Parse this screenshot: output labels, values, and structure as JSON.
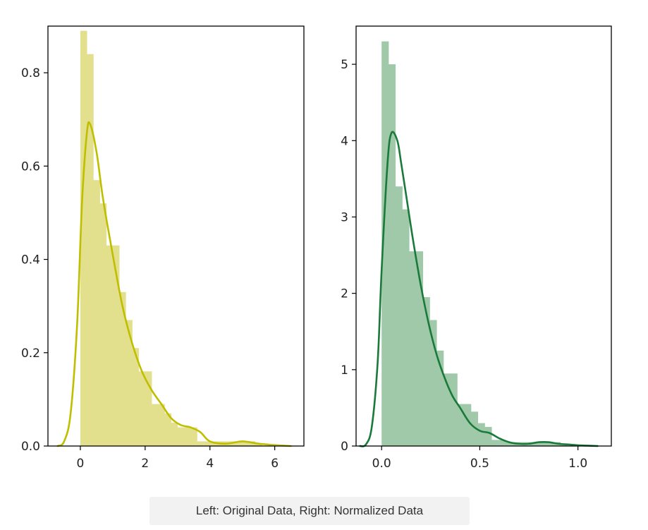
{
  "chart_data": [
    {
      "type": "histogram with kde",
      "panel": "left",
      "color_bar": "#e3e08d",
      "color_line": "#bfbf00",
      "xlim": [
        -1,
        6.9
      ],
      "ylim": [
        0,
        0.9
      ],
      "xticks": [
        0,
        2,
        4,
        6
      ],
      "yticks": [
        0.0,
        0.2,
        0.4,
        0.6,
        0.8
      ],
      "xtick_labels": [
        "0",
        "2",
        "4",
        "6"
      ],
      "ytick_labels": [
        "0.0",
        "0.2",
        "0.4",
        "0.6",
        "0.8"
      ],
      "bins": [
        {
          "x0": 0.0,
          "x1": 0.2,
          "density": 0.89
        },
        {
          "x0": 0.2,
          "x1": 0.4,
          "density": 0.84
        },
        {
          "x0": 0.4,
          "x1": 0.6,
          "density": 0.57
        },
        {
          "x0": 0.6,
          "x1": 0.8,
          "density": 0.52
        },
        {
          "x0": 0.8,
          "x1": 1.0,
          "density": 0.43
        },
        {
          "x0": 1.0,
          "x1": 1.2,
          "density": 0.43
        },
        {
          "x0": 1.2,
          "x1": 1.4,
          "density": 0.33
        },
        {
          "x0": 1.4,
          "x1": 1.6,
          "density": 0.27
        },
        {
          "x0": 1.6,
          "x1": 1.8,
          "density": 0.21
        },
        {
          "x0": 1.8,
          "x1": 2.0,
          "density": 0.16
        },
        {
          "x0": 2.0,
          "x1": 2.2,
          "density": 0.16
        },
        {
          "x0": 2.2,
          "x1": 2.4,
          "density": 0.09
        },
        {
          "x0": 2.4,
          "x1": 2.6,
          "density": 0.09
        },
        {
          "x0": 2.6,
          "x1": 2.8,
          "density": 0.07
        },
        {
          "x0": 2.8,
          "x1": 3.0,
          "density": 0.05
        },
        {
          "x0": 3.0,
          "x1": 3.2,
          "density": 0.04
        },
        {
          "x0": 3.2,
          "x1": 3.4,
          "density": 0.04
        },
        {
          "x0": 3.4,
          "x1": 3.6,
          "density": 0.04
        },
        {
          "x0": 3.6,
          "x1": 3.8,
          "density": 0.01
        },
        {
          "x0": 3.8,
          "x1": 4.0,
          "density": 0.01
        },
        {
          "x0": 4.0,
          "x1": 4.2,
          "density": 0.01
        },
        {
          "x0": 4.2,
          "x1": 4.4,
          "density": 0.01
        },
        {
          "x0": 4.4,
          "x1": 4.6,
          "density": 0.01
        },
        {
          "x0": 4.6,
          "x1": 4.8,
          "density": 0.01
        },
        {
          "x0": 4.8,
          "x1": 5.0,
          "density": 0.01
        },
        {
          "x0": 5.0,
          "x1": 5.2,
          "density": 0.01
        },
        {
          "x0": 5.2,
          "x1": 5.4,
          "density": 0.01
        },
        {
          "x0": 5.4,
          "x1": 5.6,
          "density": 0.005
        }
      ],
      "kde": {
        "x": [
          -0.7,
          -0.5,
          -0.3,
          -0.1,
          0.05,
          0.2,
          0.3,
          0.5,
          0.7,
          1.0,
          1.3,
          1.6,
          1.9,
          2.2,
          2.5,
          2.8,
          3.1,
          3.4,
          3.7,
          4.0,
          4.5,
          5.0,
          5.5,
          6.0,
          6.5
        ],
        "y": [
          0.0,
          0.01,
          0.07,
          0.26,
          0.52,
          0.67,
          0.69,
          0.63,
          0.53,
          0.41,
          0.3,
          0.22,
          0.16,
          0.12,
          0.09,
          0.06,
          0.045,
          0.04,
          0.03,
          0.01,
          0.005,
          0.01,
          0.005,
          0.002,
          0.0
        ]
      }
    },
    {
      "type": "histogram with kde",
      "panel": "right",
      "color_bar": "#9fc9a9",
      "color_line": "#1a7a3a",
      "xlim": [
        -0.13,
        1.17
      ],
      "ylim": [
        0,
        5.5
      ],
      "xticks": [
        0.0,
        0.5,
        1.0
      ],
      "yticks": [
        0,
        1,
        2,
        3,
        4,
        5
      ],
      "xtick_labels": [
        "0.0",
        "0.5",
        "1.0"
      ],
      "ytick_labels": [
        "0",
        "1",
        "2",
        "3",
        "4",
        "5"
      ],
      "bins": [
        {
          "x0": 0.0,
          "x1": 0.035,
          "density": 5.3
        },
        {
          "x0": 0.035,
          "x1": 0.07,
          "density": 5.0
        },
        {
          "x0": 0.07,
          "x1": 0.105,
          "density": 3.4
        },
        {
          "x0": 0.105,
          "x1": 0.14,
          "density": 3.1
        },
        {
          "x0": 0.14,
          "x1": 0.175,
          "density": 2.55
        },
        {
          "x0": 0.175,
          "x1": 0.21,
          "density": 2.55
        },
        {
          "x0": 0.21,
          "x1": 0.245,
          "density": 1.95
        },
        {
          "x0": 0.245,
          "x1": 0.28,
          "density": 1.65
        },
        {
          "x0": 0.28,
          "x1": 0.315,
          "density": 1.25
        },
        {
          "x0": 0.315,
          "x1": 0.35,
          "density": 0.95
        },
        {
          "x0": 0.35,
          "x1": 0.385,
          "density": 0.95
        },
        {
          "x0": 0.385,
          "x1": 0.42,
          "density": 0.55
        },
        {
          "x0": 0.42,
          "x1": 0.455,
          "density": 0.55
        },
        {
          "x0": 0.455,
          "x1": 0.49,
          "density": 0.45
        },
        {
          "x0": 0.49,
          "x1": 0.525,
          "density": 0.3
        },
        {
          "x0": 0.525,
          "x1": 0.56,
          "density": 0.25
        },
        {
          "x0": 0.56,
          "x1": 0.595,
          "density": 0.08
        },
        {
          "x0": 0.595,
          "x1": 0.63,
          "density": 0.08
        },
        {
          "x0": 0.63,
          "x1": 0.665,
          "density": 0.05
        },
        {
          "x0": 0.665,
          "x1": 0.7,
          "density": 0.05
        },
        {
          "x0": 0.7,
          "x1": 0.735,
          "density": 0.05
        },
        {
          "x0": 0.735,
          "x1": 0.77,
          "density": 0.05
        },
        {
          "x0": 0.77,
          "x1": 0.805,
          "density": 0.05
        },
        {
          "x0": 0.805,
          "x1": 0.84,
          "density": 0.05
        },
        {
          "x0": 0.84,
          "x1": 0.875,
          "density": 0.05
        },
        {
          "x0": 0.875,
          "x1": 0.91,
          "density": 0.05
        },
        {
          "x0": 0.91,
          "x1": 0.945,
          "density": 0.03
        }
      ],
      "kde": {
        "x": [
          -0.11,
          -0.08,
          -0.05,
          -0.02,
          0.0,
          0.03,
          0.05,
          0.08,
          0.1,
          0.13,
          0.16,
          0.2,
          0.24,
          0.28,
          0.32,
          0.36,
          0.4,
          0.45,
          0.5,
          0.55,
          0.6,
          0.65,
          0.7,
          0.75,
          0.8,
          0.85,
          0.9,
          0.95,
          1.0,
          1.05,
          1.1
        ],
        "y": [
          0.0,
          0.02,
          0.25,
          1.1,
          2.3,
          3.7,
          4.1,
          4.0,
          3.7,
          3.2,
          2.7,
          2.1,
          1.6,
          1.2,
          0.9,
          0.66,
          0.5,
          0.3,
          0.2,
          0.17,
          0.1,
          0.05,
          0.03,
          0.03,
          0.05,
          0.05,
          0.03,
          0.02,
          0.01,
          0.005,
          0.0
        ]
      }
    }
  ],
  "caption": "Left: Original Data, Right: Normalized Data"
}
